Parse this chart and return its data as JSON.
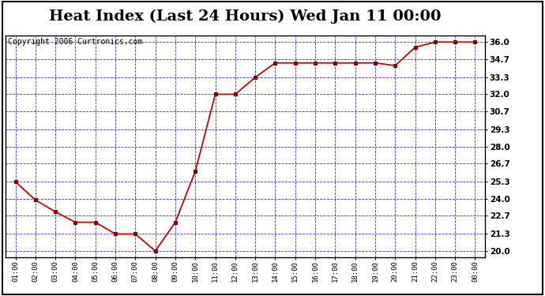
{
  "title": "Heat Index (Last 24 Hours) Wed Jan 11 00:00",
  "copyright": "Copyright 2006 Curtronics.com",
  "x_labels": [
    "01:00",
    "02:00",
    "03:00",
    "04:00",
    "05:00",
    "06:00",
    "07:00",
    "08:00",
    "09:00",
    "10:00",
    "11:00",
    "12:00",
    "13:00",
    "14:00",
    "15:00",
    "16:00",
    "17:00",
    "18:00",
    "19:00",
    "20:00",
    "21:00",
    "22:00",
    "23:00",
    "00:00"
  ],
  "y_values": [
    25.3,
    23.9,
    23.0,
    22.2,
    22.2,
    21.3,
    21.3,
    20.0,
    22.2,
    26.1,
    32.0,
    32.0,
    33.3,
    34.4,
    34.4,
    34.4,
    34.4,
    34.4,
    34.4,
    34.2,
    35.6,
    36.0,
    36.0,
    36.0
  ],
  "y_ticks": [
    20.0,
    21.3,
    22.7,
    24.0,
    25.3,
    26.7,
    28.0,
    29.3,
    30.7,
    32.0,
    33.3,
    34.7,
    36.0
  ],
  "ylim": [
    19.5,
    36.5
  ],
  "line_color": "#cc0000",
  "marker_color": "#880000",
  "bg_color": "#ffffff",
  "plot_bg_color": "#ffffff",
  "grid_color": "#0000cc",
  "border_color": "#000000",
  "title_fontsize": 14,
  "copyright_fontsize": 7
}
